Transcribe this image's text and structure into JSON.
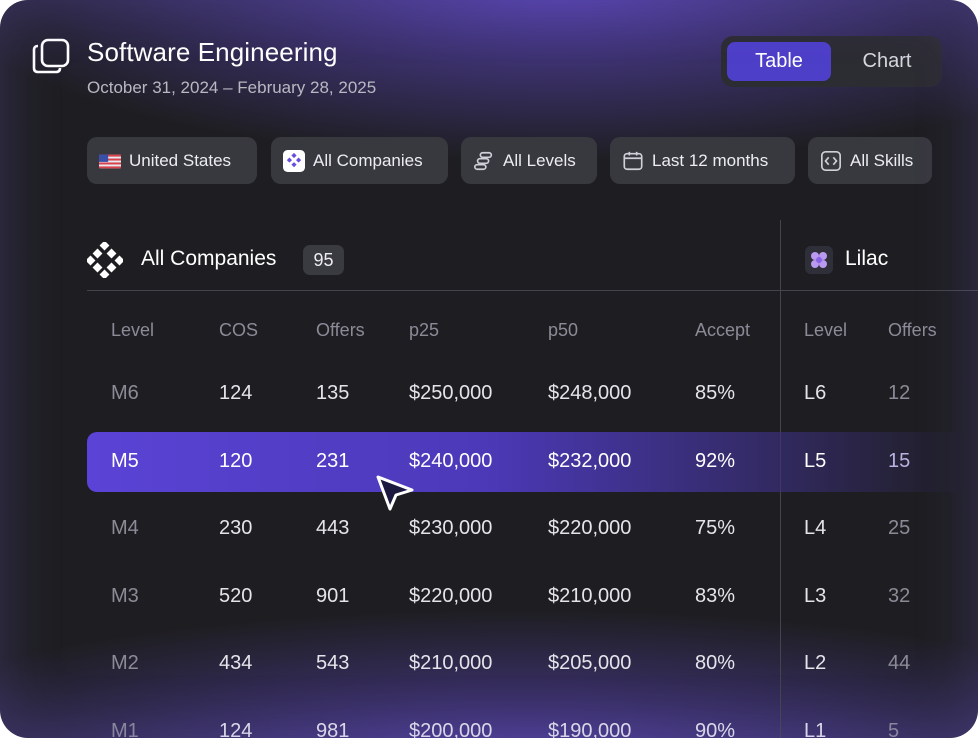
{
  "header": {
    "title": "Software Engineering",
    "date_range": "October 31, 2024 – February 28, 2025"
  },
  "view_toggle": {
    "options": [
      "Table",
      "Chart"
    ],
    "selected": "Table"
  },
  "filters": [
    {
      "label": "United States",
      "icon": "us-flag-icon"
    },
    {
      "label": "All Companies",
      "icon": "companies-icon"
    },
    {
      "label": "All Levels",
      "icon": "levels-icon"
    },
    {
      "label": "Last 12 months",
      "icon": "calendar-icon"
    },
    {
      "label": "All Skills",
      "icon": "code-icon"
    }
  ],
  "panels": {
    "left": {
      "title": "All Companies",
      "count": "95",
      "columns": [
        "Level",
        "COS",
        "Offers",
        "p25",
        "p50",
        "Accept"
      ],
      "rows": [
        [
          "M6",
          "124",
          "135",
          "$250,000",
          "$248,000",
          "85%"
        ],
        [
          "M5",
          "120",
          "231",
          "$240,000",
          "$232,000",
          "92%"
        ],
        [
          "M4",
          "230",
          "443",
          "$230,000",
          "$220,000",
          "75%"
        ],
        [
          "M3",
          "520",
          "901",
          "$220,000",
          "$210,000",
          "83%"
        ],
        [
          "M2",
          "434",
          "543",
          "$210,000",
          "$205,000",
          "80%"
        ],
        [
          "M1",
          "124",
          "981",
          "$200,000",
          "$190,000",
          "90%"
        ]
      ]
    },
    "right": {
      "title": "Lilac",
      "columns": [
        "Level",
        "Offers"
      ],
      "rows": [
        [
          "L6",
          "12"
        ],
        [
          "L5",
          "15"
        ],
        [
          "L4",
          "25"
        ],
        [
          "L3",
          "32"
        ],
        [
          "L2",
          "44"
        ],
        [
          "L1",
          "5"
        ]
      ]
    }
  },
  "selected_row_index": 1,
  "colors": {
    "accent": "#4e3fc8",
    "background": "#1e1e22",
    "chip": "#38383f"
  }
}
